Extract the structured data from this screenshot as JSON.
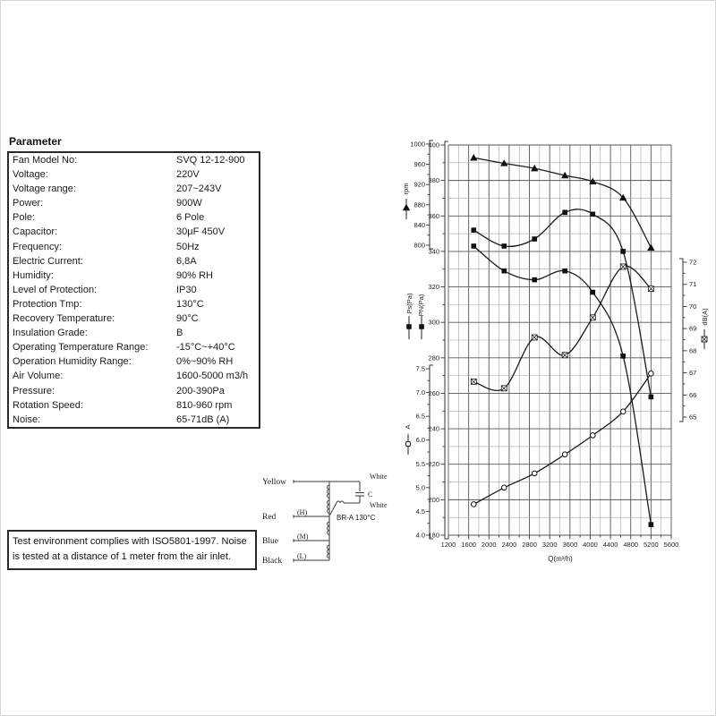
{
  "parameter_section": {
    "heading": "Parameter",
    "rows": [
      {
        "label": "Fan Model No:",
        "value": "SVQ 12-12-900"
      },
      {
        "label": "Voltage:",
        "value": "220V"
      },
      {
        "label": "Voltage range:",
        "value": "207~243V"
      },
      {
        "label": "Power:",
        "value": "900W"
      },
      {
        "label": "Pole:",
        "value": "6 Pole"
      },
      {
        "label": "Capacitor:",
        "value": "30μF 450V"
      },
      {
        "label": "Frequency:",
        "value": "50Hz"
      },
      {
        "label": "Electric Current:",
        "value": "6,8A"
      },
      {
        "label": "Humidity:",
        "value": "90% RH"
      },
      {
        "label": "Level of Protection:",
        "value": "IP30"
      },
      {
        "label": "Protection Tmp:",
        "value": "130°C"
      },
      {
        "label": "Recovery Temperature:",
        "value": "90°C"
      },
      {
        "label": "Insulation Grade:",
        "value": "B"
      },
      {
        "label": "Operating Temperature Range:",
        "value": "-15°C~+40°C"
      },
      {
        "label": "Operation Humidity Range:",
        "value": "0%~90% RH"
      },
      {
        "label": "Air Volume:",
        "value": "1600-5000 m3/h"
      },
      {
        "label": "Pressure:",
        "value": "200-390Pa"
      },
      {
        "label": "Rotation Speed:",
        "value": "810-960 rpm"
      },
      {
        "label": "Noise:",
        "value": "65-71dB (A)"
      }
    ]
  },
  "note_box": {
    "lines": [
      "Test environment complies with ISO5801-1997. Noise",
      "is tested at a distance of 1 meter from the air inlet."
    ]
  },
  "wiring": {
    "yellow": "Yellow",
    "red": "Red",
    "blue": "Blue",
    "black": "Black",
    "h": "(H)",
    "m": "(M)",
    "l": "(L)",
    "white_top": "White",
    "white_bottom": "White",
    "capacitor": "C",
    "protector": "BR-A 130°C"
  },
  "chart_data": {
    "type": "line",
    "x": [
      1700,
      2300,
      2900,
      3500,
      4050,
      4650,
      5200
    ],
    "x_axis": {
      "label": "Q(m³/h)",
      "min": 1200,
      "max": 5600,
      "major_step": 400,
      "minor_step": 200
    },
    "axes": {
      "pressure": {
        "labels": [
          "Ps(Pa)",
          "PN(Pa)"
        ],
        "min": 180,
        "max": 400,
        "major_step": 20,
        "minor_step": 10,
        "side": "left"
      },
      "rpm": {
        "label": "rpm",
        "min": 800,
        "max": 1000,
        "major_step": 40,
        "minor_step": 20,
        "side": "outer-left-top"
      },
      "current": {
        "label": "A",
        "min": 4.0,
        "max": 7.5,
        "major_step": 0.5,
        "minor_step": 0.25,
        "side": "outer-left-bottom"
      },
      "noise": {
        "label": "dB(A)",
        "min": 65,
        "max": 72,
        "major_step": 1,
        "minor_step": 0.5,
        "side": "right"
      }
    },
    "grid": true,
    "series": [
      {
        "name": "rpm",
        "axis": "rpm",
        "marker": "filled-triangle",
        "values": [
          973,
          962,
          952,
          938,
          926,
          894,
          795
        ]
      },
      {
        "name": "PN(Pa)",
        "axis": "pressure",
        "marker": "filled-square",
        "values": [
          352,
          343,
          347,
          362,
          361,
          340,
          258
        ]
      },
      {
        "name": "Ps(Pa)",
        "axis": "pressure",
        "marker": "filled-square",
        "values": [
          343,
          329,
          324,
          329,
          317,
          281,
          186
        ]
      },
      {
        "name": "dB(A)",
        "axis": "noise",
        "marker": "crossed-square",
        "values": [
          66.6,
          66.3,
          68.6,
          67.8,
          69.5,
          71.8,
          70.8
        ]
      },
      {
        "name": "A",
        "axis": "current",
        "marker": "open-circle",
        "values": [
          4.65,
          5.0,
          5.3,
          5.7,
          6.1,
          6.6,
          7.4
        ]
      }
    ]
  }
}
